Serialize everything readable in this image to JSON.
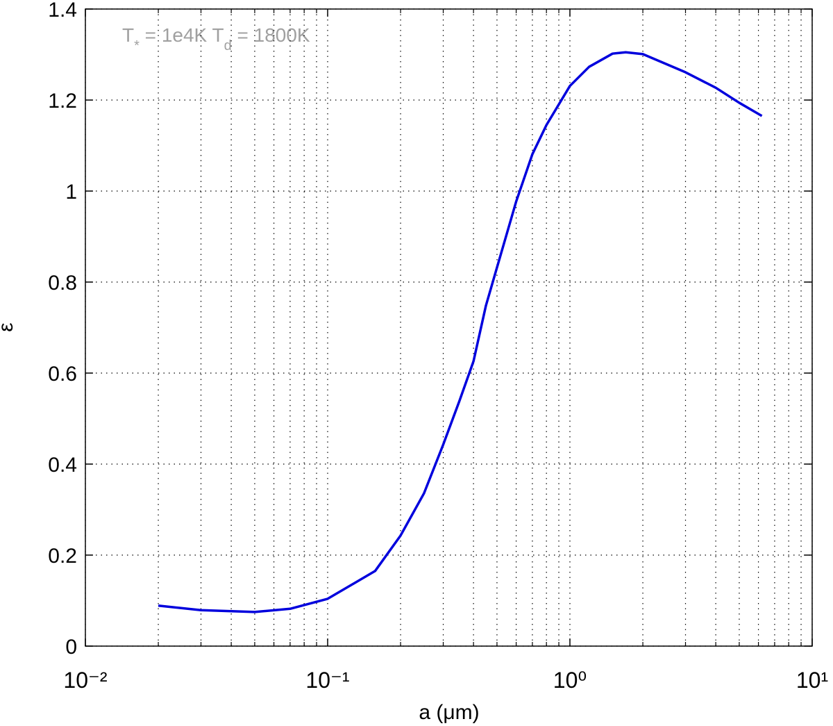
{
  "chart_data": {
    "type": "line",
    "x_label": "a (μm)",
    "y_label": "ε",
    "annotation": [
      "T",
      "*",
      " = 1e4K  T",
      "d",
      " = 1800K"
    ],
    "x": [
      0.02,
      0.03,
      0.05,
      0.07,
      0.1,
      0.157,
      0.2,
      0.25,
      0.3,
      0.35,
      0.4,
      0.45,
      0.5,
      0.6,
      0.7,
      0.8,
      1.0,
      1.2,
      1.5,
      1.7,
      2,
      3,
      4,
      5,
      6.2
    ],
    "series": [
      {
        "name": "ε",
        "color": "#0000dd",
        "values": [
          0.089,
          0.079,
          0.075,
          0.082,
          0.104,
          0.165,
          0.243,
          0.336,
          0.443,
          0.539,
          0.626,
          0.748,
          0.832,
          0.977,
          1.081,
          1.145,
          1.231,
          1.273,
          1.302,
          1.305,
          1.301,
          1.261,
          1.227,
          1.194,
          1.165
        ]
      }
    ],
    "x_scale": "log",
    "xlim": [
      0.01,
      10
    ],
    "xticks": [
      {
        "value": 0.01,
        "label": "10⁻²"
      },
      {
        "value": 0.1,
        "label": "10⁻¹"
      },
      {
        "value": 1,
        "label": "10⁰"
      },
      {
        "value": 10,
        "label": "10¹"
      }
    ],
    "ylim": [
      0,
      1.4
    ],
    "yticks": [
      0,
      0.2,
      0.4,
      0.6,
      0.8,
      1,
      1.2,
      1.4
    ],
    "grid": true
  }
}
